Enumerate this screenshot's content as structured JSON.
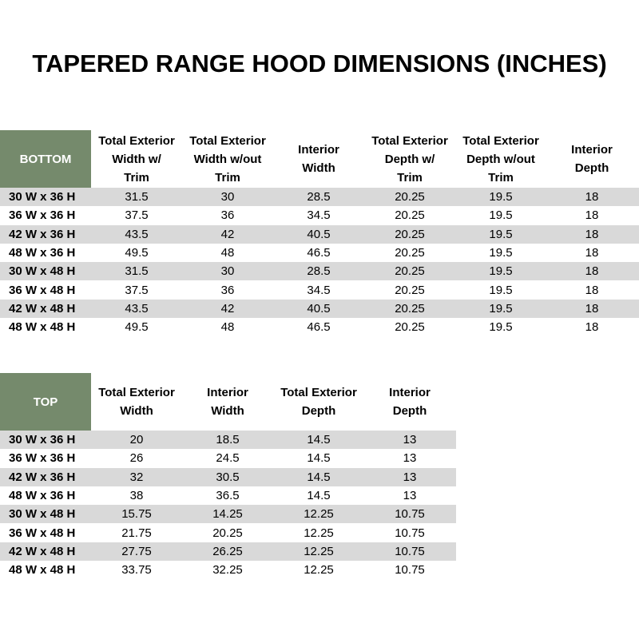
{
  "title": "TAPERED RANGE HOOD DIMENSIONS (INCHES)",
  "tables": [
    {
      "corner": "BOTTOM",
      "headers": [
        [
          "Total Exterior",
          "Width w/",
          "Trim"
        ],
        [
          "Total Exterior",
          "Width w/out",
          "Trim"
        ],
        [
          "Interior",
          "Width"
        ],
        [
          "Total Exterior",
          "Depth w/",
          "Trim"
        ],
        [
          "Total Exterior",
          "Depth w/out",
          "Trim"
        ],
        [
          "Interior",
          "Depth"
        ]
      ],
      "rows": [
        [
          "30 W x 36 H",
          31.5,
          30,
          28.5,
          20.25,
          19.5,
          18
        ],
        [
          "36 W x 36 H",
          37.5,
          36,
          34.5,
          20.25,
          19.5,
          18
        ],
        [
          "42 W x 36 H",
          43.5,
          42,
          40.5,
          20.25,
          19.5,
          18
        ],
        [
          "48 W x 36 H",
          49.5,
          48,
          46.5,
          20.25,
          19.5,
          18
        ],
        [
          "30 W x 48 H",
          31.5,
          30,
          28.5,
          20.25,
          19.5,
          18
        ],
        [
          "36 W x 48 H",
          37.5,
          36,
          34.5,
          20.25,
          19.5,
          18
        ],
        [
          "42 W x 48 H",
          43.5,
          42,
          40.5,
          20.25,
          19.5,
          18
        ],
        [
          "48 W x 48 H",
          49.5,
          48,
          46.5,
          20.25,
          19.5,
          18
        ]
      ]
    },
    {
      "corner": "TOP",
      "headers": [
        [
          "Total Exterior",
          "Width"
        ],
        [
          "Interior",
          "Width"
        ],
        [
          "Total Exterior",
          "Depth"
        ],
        [
          "Interior",
          "Depth"
        ]
      ],
      "rows": [
        [
          "30 W x 36 H",
          20,
          18.5,
          14.5,
          13
        ],
        [
          "36 W x 36 H",
          26,
          24.5,
          14.5,
          13
        ],
        [
          "42 W x 36 H",
          32,
          30.5,
          14.5,
          13
        ],
        [
          "48 W x 36 H",
          38,
          36.5,
          14.5,
          13
        ],
        [
          "30 W x 48 H",
          15.75,
          14.25,
          12.25,
          10.75
        ],
        [
          "36 W x 48 H",
          21.75,
          20.25,
          12.25,
          10.75
        ],
        [
          "42 W x 48 H",
          27.75,
          26.25,
          12.25,
          10.75
        ],
        [
          "48 W x 48 H",
          33.75,
          32.25,
          12.25,
          10.75
        ]
      ]
    }
  ]
}
